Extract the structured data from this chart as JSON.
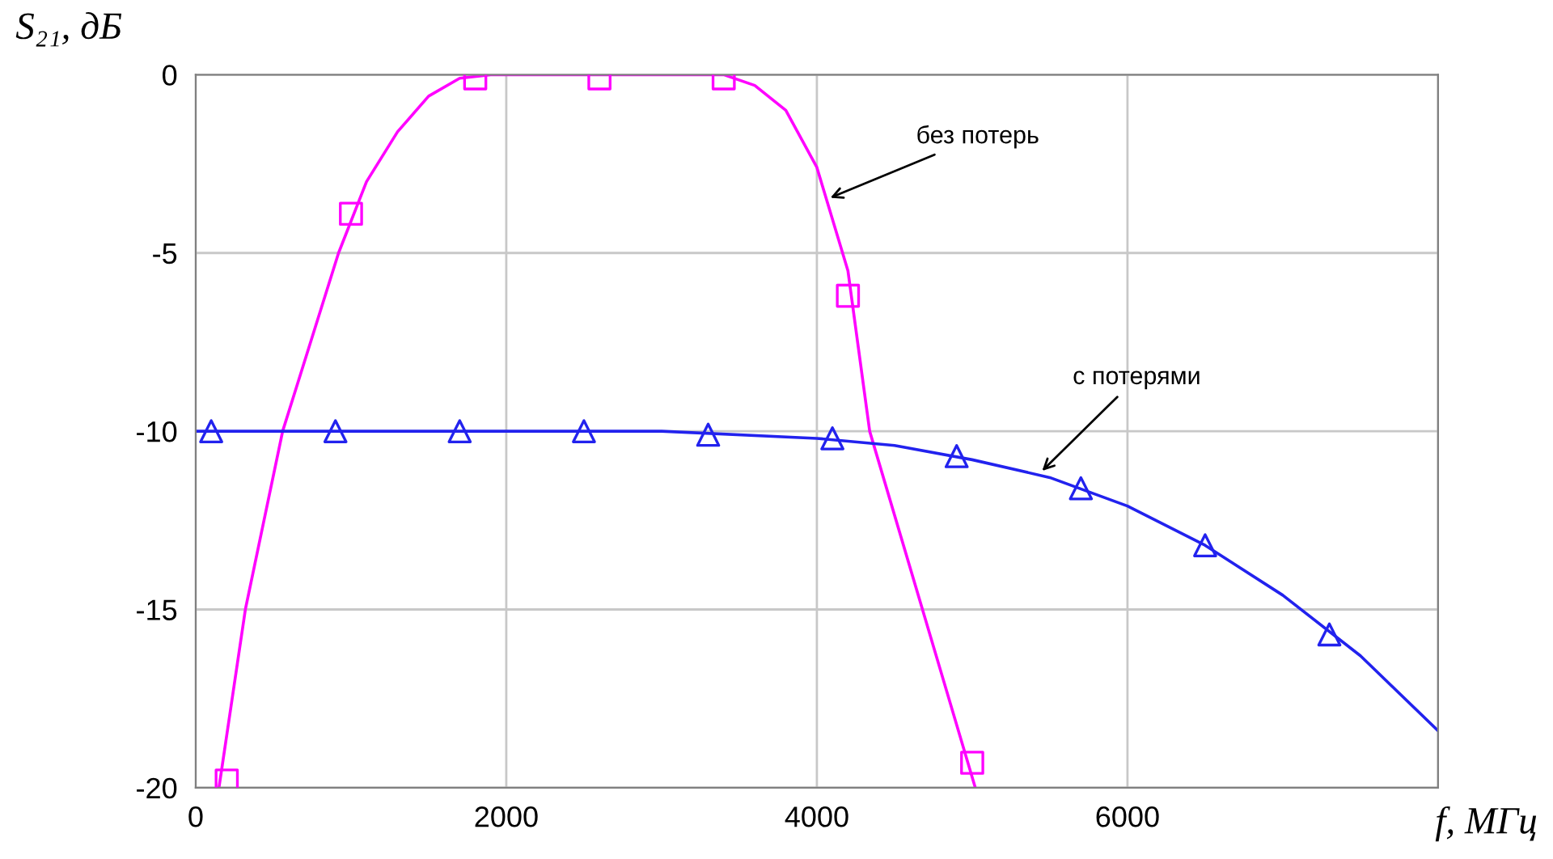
{
  "chart_data": {
    "type": "line",
    "xlabel": "f, МГц",
    "ylabel": "S₂₁, дБ",
    "xlim": [
      0,
      8000
    ],
    "ylim": [
      -20,
      0
    ],
    "xticks": [
      0,
      2000,
      4000,
      6000,
      {
        "value": 8000,
        "label": null
      }
    ],
    "yticks": [
      -20,
      -15,
      -10,
      -5,
      0
    ],
    "grid": true,
    "legend": false,
    "series": [
      {
        "color": "#ff00ff",
        "marker": "none",
        "x": [
          150,
          320,
          560,
          920,
          1100,
          1300,
          1500,
          1700,
          1900,
          3400,
          3600,
          3800,
          4000,
          4200,
          4340,
          4680,
          5020
        ],
        "values": [
          -20,
          -15,
          -10,
          -5,
          -3,
          -1.6,
          -0.6,
          -0.1,
          0,
          0,
          -0.3,
          -1,
          -2.6,
          -5.5,
          -10,
          -15,
          -20
        ]
      },
      {
        "type": "scatter",
        "color": "#ff00ff",
        "marker": "square",
        "x": [
          200,
          1000,
          1800,
          2600,
          3400,
          4200,
          5000
        ],
        "values": [
          -19.8,
          -3.9,
          -0.1,
          -0.1,
          -0.1,
          -6.2,
          -19.3
        ]
      },
      {
        "color": "#2222ee",
        "marker": "none",
        "x": [
          0,
          3000,
          4000,
          4500,
          5000,
          5500,
          6000,
          6500,
          7000,
          7500,
          8000
        ],
        "values": [
          -10,
          -10,
          -10.2,
          -10.4,
          -10.8,
          -11.3,
          -12.1,
          -13.2,
          -14.6,
          -16.3,
          -18.4
        ]
      },
      {
        "type": "scatter",
        "color": "#2222ee",
        "marker": "triangle",
        "x": [
          100,
          900,
          1700,
          2500,
          3300,
          4100,
          4900,
          5700,
          6500,
          7300
        ],
        "values": [
          -10,
          -10,
          -10,
          -10,
          -10.1,
          -10.2,
          -10.7,
          -11.6,
          -13.2,
          -15.7
        ]
      }
    ],
    "annotations": [
      {
        "text": "без потерь",
        "x": 4060,
        "y": -3.5
      },
      {
        "text": "с потерями",
        "x": 5430,
        "y": -11.2
      }
    ]
  }
}
